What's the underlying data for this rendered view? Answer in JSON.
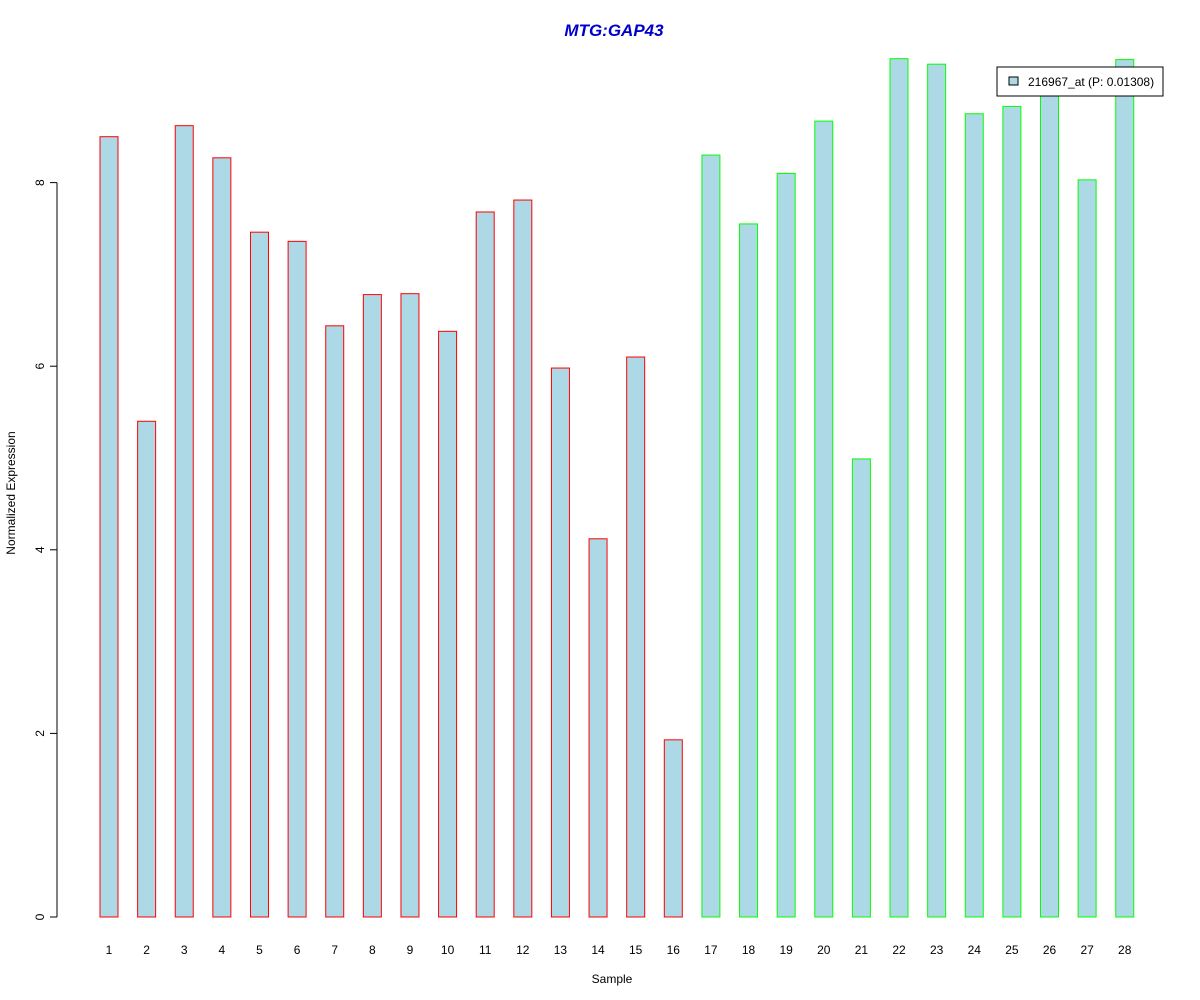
{
  "chart_data": {
    "type": "bar",
    "title": "MTG:GAP43",
    "xlabel": "Sample",
    "ylabel": "Normalized Expression",
    "categories": [
      "1",
      "2",
      "3",
      "4",
      "5",
      "6",
      "7",
      "8",
      "9",
      "10",
      "11",
      "12",
      "13",
      "14",
      "15",
      "16",
      "17",
      "18",
      "19",
      "20",
      "21",
      "22",
      "23",
      "24",
      "25",
      "26",
      "27",
      "28"
    ],
    "series": [
      {
        "name": "216967_at (P: 0.01308)",
        "values": [
          8.5,
          5.4,
          8.62,
          8.27,
          7.46,
          7.36,
          6.44,
          6.78,
          6.79,
          6.38,
          7.68,
          7.81,
          5.98,
          4.12,
          6.1,
          1.93,
          8.3,
          7.55,
          8.1,
          8.67,
          4.99,
          9.35,
          9.29,
          8.75,
          8.83,
          8.98,
          8.03,
          9.34
        ]
      }
    ],
    "ylim": [
      0,
      9.4
    ],
    "yticks": [
      "0",
      "2",
      "4",
      "6",
      "8"
    ],
    "legend_position": "top-right",
    "grid": false,
    "colors": {
      "title": "#0000CC",
      "bar_fill": "#ADD8E6",
      "group1_border": "#FF0000",
      "group2_border": "#00FF00",
      "axis": "#000000"
    },
    "border_groups": [
      "group1",
      "group1",
      "group1",
      "group1",
      "group1",
      "group1",
      "group1",
      "group1",
      "group1",
      "group1",
      "group1",
      "group1",
      "group1",
      "group1",
      "group1",
      "group1",
      "group2",
      "group2",
      "group2",
      "group2",
      "group2",
      "group2",
      "group2",
      "group2",
      "group2",
      "group2",
      "group2",
      "group2"
    ]
  }
}
